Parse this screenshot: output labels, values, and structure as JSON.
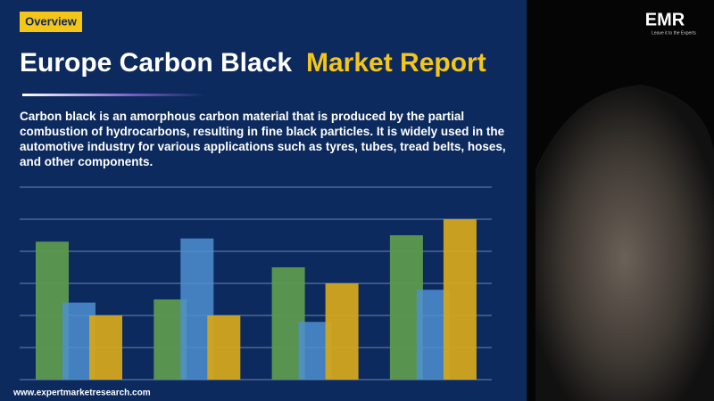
{
  "badge": "Overview",
  "title": {
    "main": "Europe Carbon Black",
    "highlight": "Market Report"
  },
  "description": "Carbon black is an amorphous carbon material that is produced by the partial combustion of hydrocarbons, resulting in fine black particles. It is widely used in the automotive industry for various applications such as tyres, tubes, tread belts, hoses, and other components.",
  "logo": {
    "name": "EMR",
    "tagline": "Leave it to the Experts"
  },
  "footer": "www.expertmarketresearch.com",
  "chart_data": {
    "type": "bar",
    "categories": [
      null,
      null,
      null,
      null
    ],
    "series": [
      {
        "color": "#5d9a4e",
        "values": [
          4.3,
          2.5,
          3.5,
          4.5
        ]
      },
      {
        "color": "#4f8fd0",
        "values": [
          2.4,
          4.4,
          1.8,
          2.8
        ]
      },
      {
        "color": "#d3a51c",
        "values": [
          2.0,
          2.0,
          3.0,
          5.0
        ]
      }
    ],
    "ylim": [
      0,
      6
    ],
    "yticks": [
      0,
      1,
      2,
      3,
      4,
      5,
      6
    ],
    "grid": true
  }
}
